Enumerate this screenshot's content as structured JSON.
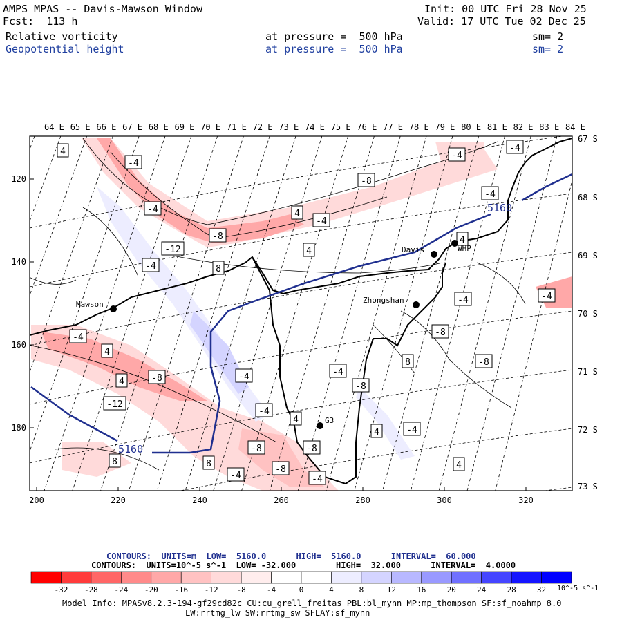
{
  "header": {
    "title": "AMPS MPAS -- Davis-Mawson Window",
    "forecast": "Fcst:  113 h",
    "init": "Init: 00 UTC Fri 28 Nov 25",
    "valid": "Valid: 17 UTC Tue 02 Dec 25",
    "field1": {
      "name": "Relative vorticity",
      "pressure": "at pressure =  500 hPa",
      "sm": "sm= 2"
    },
    "field2": {
      "name": "Geopotential height",
      "pressure": "at pressure =  500 hPa",
      "sm": "sm= 2"
    }
  },
  "map": {
    "top_lon_labels": [
      "64 E",
      "65 E",
      "66 E",
      "67 E",
      "68 E",
      "69 E",
      "70 E",
      "71 E",
      "72 E",
      "73 E",
      "74 E",
      "75 E",
      "76 E",
      "77 E",
      "78 E",
      "79 E",
      "80 E",
      "81 E",
      "82 E",
      "83 E",
      "84 E"
    ],
    "right_lat_labels": [
      "67 S",
      "68 S",
      "69 S",
      "70 S",
      "71 S",
      "72 S",
      "73 S"
    ],
    "x_ticks": [
      "200",
      "220",
      "240",
      "260",
      "280",
      "300",
      "320"
    ],
    "y_ticks": [
      "120",
      "140",
      "160",
      "180"
    ],
    "stations": [
      {
        "name": "Mawson"
      },
      {
        "name": "Davis"
      },
      {
        "name": "WHP"
      },
      {
        "name": "Zhongshan"
      },
      {
        "name": "G3"
      }
    ],
    "height_labels": [
      "5160",
      "5160"
    ],
    "vort_labels": [
      "4",
      "-4",
      "-4",
      "-8",
      "-12",
      "-4",
      "8",
      "4",
      "-8",
      "-4",
      "4",
      "-4",
      "-4",
      "-4",
      "4",
      "-4",
      "-4",
      "-8",
      "-4",
      "4",
      "4",
      "-8",
      "-12",
      "-4",
      "-4",
      "8",
      "-8",
      "-8",
      "-4",
      "-8",
      "4",
      "-4",
      "8",
      "8",
      "-4",
      "-8",
      "-8",
      "4",
      "4",
      "-4",
      "-4",
      "4"
    ]
  },
  "footer": {
    "contour1": "CONTOURS:  UNITS=m  LOW=  5160.0      HIGH=  5160.0      INTERVAL=  60.000",
    "contour2": "CONTOURS:  UNITS=10^-5 s^-1  LOW= -32.000        HIGH=  32.000      INTERVAL=  4.0000",
    "colorbar_labels": [
      "-32",
      "-28",
      "-24",
      "-20",
      "-16",
      "-12",
      "-8",
      "-4",
      "0",
      "4",
      "8",
      "12",
      "16",
      "20",
      "24",
      "28",
      "32"
    ],
    "colorbar_unit": "10^-5 s^-1",
    "colorbar_colors": [
      "#ff0000",
      "#ff3b3b",
      "#ff6666",
      "#ff8a8a",
      "#ffa8a8",
      "#ffc2c2",
      "#ffdada",
      "#ffeded",
      "#ffffff",
      "#ffffff",
      "#ededff",
      "#d4d4ff",
      "#b8b8ff",
      "#9999ff",
      "#7070ff",
      "#4545ff",
      "#1414ff",
      "#0000ff"
    ],
    "model_info1": "Model Info: MPASv8.2.3-194-gf29cd82c CU:cu_grell_freitas PBL:bl_mynn MP:mp_thompson SF:sf_noahmp 8.0",
    "model_info2": "LW:rrtmg_lw SW:rrtmg_sw SFLAY:sf_mynn"
  }
}
